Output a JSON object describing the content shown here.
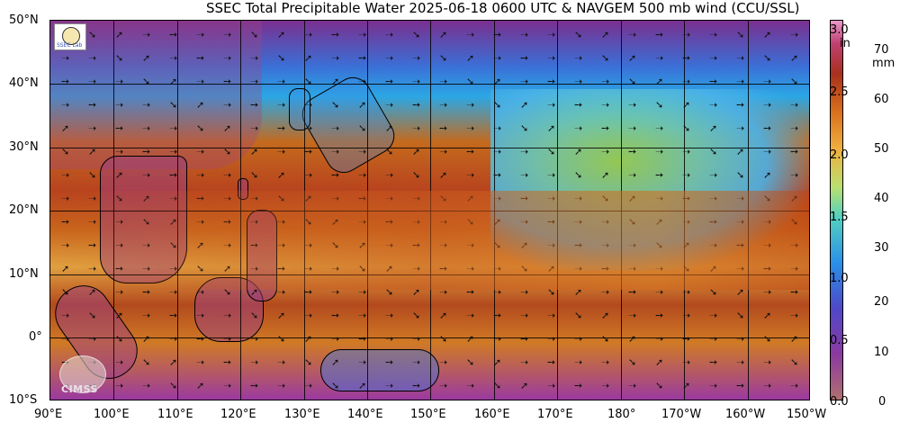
{
  "title": "SSEC Total Precipitable Water  2025-06-18 0600 UTC & NAVGEM 500 mb wind (CCU/SSL)",
  "lat_labels": [
    "50°N",
    "40°N",
    "30°N",
    "20°N",
    "10°N",
    "0°",
    "10°S"
  ],
  "lon_labels": [
    "90°E",
    "100°E",
    "110°E",
    "120°E",
    "130°E",
    "140°E",
    "150°E",
    "160°E",
    "170°E",
    "180°",
    "170°W",
    "160°W",
    "150°W"
  ],
  "colorbar": {
    "in_label": "in",
    "mm_label": "mm",
    "in_ticks": [
      "3.0",
      "2.5",
      "2.0",
      "1.5",
      "1.0",
      "0.5",
      "0.0"
    ],
    "mm_ticks": [
      "70",
      "60",
      "50",
      "40",
      "30",
      "20",
      "10",
      "0"
    ]
  },
  "logos": {
    "cimss_text": "CIMSS",
    "ssec_text": "SSEC Lab"
  }
}
